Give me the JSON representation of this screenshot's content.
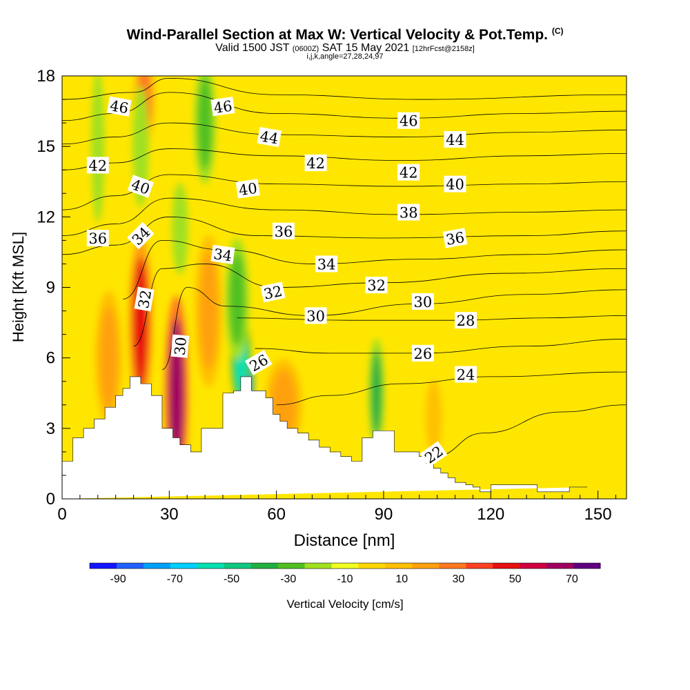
{
  "title": "Wind-Parallel Section at Max W: Vertical Velocity & Pot.Temp.",
  "title_suffix": "(C)",
  "subtitle": {
    "valid_prefix": "Valid 1500 JST",
    "utc": "(0600Z)",
    "date": "SAT 15 May 2021",
    "fcst": "[12hrFcst@2158z]"
  },
  "params": "i,j,k,angle=27,28,24,97",
  "colors": {
    "background_field": "#ffe600",
    "terrain": "#ffffff",
    "contour": "#000000"
  },
  "chart_data": {
    "type": "heatmap",
    "xlabel": "Distance [nm]",
    "ylabel": "Height [Kft MSL]",
    "xlim": [
      0,
      158
    ],
    "ylim": [
      0,
      18
    ],
    "xticks": [
      0,
      30,
      60,
      90,
      120,
      150
    ],
    "yticks": [
      0,
      3,
      6,
      9,
      12,
      15,
      18
    ],
    "colorbar": {
      "label": "Vertical Velocity [cm/s]",
      "tick_labels": [
        -90,
        -70,
        -50,
        -30,
        -10,
        10,
        30,
        50,
        70
      ],
      "min": -100,
      "max": 80,
      "step": 10,
      "colors": [
        "#1414ff",
        "#2060ff",
        "#00a0ff",
        "#00d0ff",
        "#00e0b0",
        "#10c880",
        "#20b040",
        "#50c020",
        "#a0e020",
        "#f0ff20",
        "#ffd800",
        "#ffc000",
        "#ffa010",
        "#ff7820",
        "#ff4020",
        "#e81010",
        "#d00040",
        "#a00060",
        "#600080"
      ]
    },
    "terrain_profile": {
      "x": [
        0,
        3,
        3,
        6,
        6,
        9,
        9,
        12,
        12,
        15,
        15,
        17,
        17,
        19,
        19,
        22,
        22,
        25,
        25,
        28,
        28,
        31,
        31,
        33,
        33,
        36,
        36,
        39,
        39,
        45,
        45,
        48,
        48,
        50,
        50,
        53,
        53,
        57,
        57,
        59,
        59,
        61,
        61,
        63,
        63,
        66,
        66,
        69,
        69,
        72,
        72,
        75,
        75,
        78,
        78,
        81,
        81,
        84,
        84,
        87,
        87,
        93,
        93,
        100,
        100,
        102,
        102,
        104,
        104,
        106,
        106,
        108,
        108,
        110,
        110,
        113,
        113,
        115,
        115,
        117,
        117,
        120,
        120,
        133,
        133,
        142,
        142,
        147,
        147,
        158
      ],
      "y": [
        1.6,
        1.6,
        2.6,
        2.6,
        3.0,
        3.0,
        3.4,
        3.4,
        3.9,
        3.9,
        4.4,
        4.4,
        4.7,
        4.7,
        5.2,
        5.2,
        4.9,
        4.9,
        4.4,
        4.4,
        3.0,
        3.0,
        2.6,
        2.6,
        2.3,
        2.3,
        2.0,
        2.0,
        3.0,
        3.0,
        4.5,
        4.5,
        4.6,
        4.6,
        5.2,
        5.2,
        4.6,
        4.6,
        4.3,
        4.3,
        3.6,
        3.6,
        3.3,
        3.3,
        3.0,
        3.0,
        2.8,
        2.8,
        2.5,
        2.5,
        2.2,
        2.2,
        2.0,
        2.0,
        1.8,
        1.8,
        1.6,
        1.6,
        2.6,
        2.6,
        2.9,
        2.9,
        2.0,
        2.0,
        1.8,
        1.8,
        1.5,
        1.5,
        1.3,
        1.3,
        1.1,
        1.1,
        0.9,
        0.9,
        0.7,
        0.7,
        0.6,
        0.6,
        0.5,
        0.5,
        0.3,
        0.3,
        0.6,
        0.6,
        0.3,
        0.3,
        0.5,
        0.5
      ]
    },
    "velocity_features": [
      {
        "x": 22,
        "y": 7.5,
        "rx": 2.2,
        "ry": 2.8,
        "value": 55
      },
      {
        "x": 32,
        "y": 4.5,
        "rx": 2.2,
        "ry": 3.2,
        "value": 75
      },
      {
        "x": 23,
        "y": 17.0,
        "rx": 2.0,
        "ry": 1.5,
        "value": 30
      },
      {
        "x": 13,
        "y": 6.0,
        "rx": 2.5,
        "ry": 2.2,
        "value": 25
      },
      {
        "x": 41,
        "y": 8.0,
        "rx": 2.5,
        "ry": 2.5,
        "value": 20
      },
      {
        "x": 52,
        "y": 5.0,
        "rx": 1.0,
        "ry": 0.8,
        "value": -95
      },
      {
        "x": 50,
        "y": 6.0,
        "rx": 1.8,
        "ry": 1.5,
        "value": -55
      },
      {
        "x": 49,
        "y": 8.5,
        "rx": 2.2,
        "ry": 2.0,
        "value": -30
      },
      {
        "x": 88,
        "y": 4.5,
        "rx": 1.5,
        "ry": 1.8,
        "value": -35
      },
      {
        "x": 40,
        "y": 16.0,
        "rx": 2.0,
        "ry": 2.0,
        "value": -25
      },
      {
        "x": 22,
        "y": 15.0,
        "rx": 1.5,
        "ry": 2.0,
        "value": -20
      },
      {
        "x": 10,
        "y": 15.0,
        "rx": 1.2,
        "ry": 2.5,
        "value": -15
      },
      {
        "x": 33,
        "y": 11.5,
        "rx": 1.5,
        "ry": 1.5,
        "value": -20
      },
      {
        "x": 62,
        "y": 4.0,
        "rx": 3.5,
        "ry": 1.5,
        "value": 20
      },
      {
        "x": 104,
        "y": 3.5,
        "rx": 1.5,
        "ry": 1.2,
        "value": 15
      }
    ],
    "isentropes": [
      {
        "label": "22",
        "points": [
          [
            88,
            0.9
          ],
          [
            104,
            1.8
          ],
          [
            118,
            2.8
          ],
          [
            140,
            3.7
          ],
          [
            158,
            4.0
          ]
        ]
      },
      {
        "label": "24",
        "points": [
          [
            60,
            4.0
          ],
          [
            75,
            4.4
          ],
          [
            95,
            4.9
          ],
          [
            120,
            5.2
          ],
          [
            158,
            5.4
          ]
        ]
      },
      {
        "label": "26",
        "points": [
          [
            54,
            6.4
          ],
          [
            75,
            6.2
          ],
          [
            100,
            6.2
          ],
          [
            130,
            6.5
          ],
          [
            158,
            6.8
          ]
        ]
      },
      {
        "label": "28",
        "points": [
          [
            49,
            7.7
          ],
          [
            80,
            7.6
          ],
          [
            110,
            7.6
          ],
          [
            135,
            7.7
          ],
          [
            158,
            7.8
          ]
        ]
      },
      {
        "label": "30",
        "points": [
          [
            28,
            5.5
          ],
          [
            35,
            9.0
          ],
          [
            46,
            8.2
          ],
          [
            70,
            7.8
          ],
          [
            100,
            8.3
          ],
          [
            130,
            8.7
          ],
          [
            158,
            8.9
          ]
        ]
      },
      {
        "label": "32",
        "points": [
          [
            20,
            6.5
          ],
          [
            28,
            9.8
          ],
          [
            40,
            10.0
          ],
          [
            60,
            9.0
          ],
          [
            90,
            9.2
          ],
          [
            125,
            9.6
          ],
          [
            158,
            9.8
          ]
        ]
      },
      {
        "label": "34",
        "points": [
          [
            17,
            8.5
          ],
          [
            28,
            11.0
          ],
          [
            45,
            10.6
          ],
          [
            70,
            10.0
          ],
          [
            100,
            10.2
          ],
          [
            130,
            10.4
          ],
          [
            158,
            10.6
          ]
        ]
      },
      {
        "label": "36",
        "points": [
          [
            0,
            10.4
          ],
          [
            15,
            10.8
          ],
          [
            30,
            12.0
          ],
          [
            55,
            11.2
          ],
          [
            90,
            11.1
          ],
          [
            130,
            11.2
          ],
          [
            158,
            11.4
          ]
        ]
      },
      {
        "label": "38",
        "points": [
          [
            0,
            11.2
          ],
          [
            15,
            11.7
          ],
          [
            30,
            12.8
          ],
          [
            60,
            12.3
          ],
          [
            95,
            12.1
          ],
          [
            130,
            12.2
          ],
          [
            158,
            12.3
          ]
        ]
      },
      {
        "label": "40",
        "points": [
          [
            0,
            12.3
          ],
          [
            15,
            12.9
          ],
          [
            30,
            13.8
          ],
          [
            60,
            13.4
          ],
          [
            95,
            13.3
          ],
          [
            130,
            13.4
          ],
          [
            158,
            13.5
          ]
        ]
      },
      {
        "label": "42",
        "points": [
          [
            0,
            14.0
          ],
          [
            15,
            14.3
          ],
          [
            30,
            14.9
          ],
          [
            60,
            14.6
          ],
          [
            95,
            14.4
          ],
          [
            130,
            14.6
          ],
          [
            158,
            14.7
          ]
        ]
      },
      {
        "label": "44",
        "points": [
          [
            0,
            15.1
          ],
          [
            15,
            15.4
          ],
          [
            30,
            16.0
          ],
          [
            60,
            15.5
          ],
          [
            95,
            15.4
          ],
          [
            130,
            15.6
          ],
          [
            158,
            15.7
          ]
        ]
      },
      {
        "label": "46",
        "points": [
          [
            0,
            16.1
          ],
          [
            15,
            16.4
          ],
          [
            30,
            17.3
          ],
          [
            60,
            16.4
          ],
          [
            95,
            16.2
          ],
          [
            130,
            16.4
          ],
          [
            158,
            16.5
          ]
        ]
      },
      {
        "label": "",
        "points": [
          [
            0,
            17.0
          ],
          [
            20,
            17.3
          ],
          [
            30,
            17.9
          ],
          [
            60,
            17.2
          ],
          [
            100,
            17.0
          ],
          [
            158,
            17.2
          ]
        ]
      }
    ],
    "contour_labels": [
      {
        "text": "46",
        "x": 16,
        "y": 16.7,
        "angle": 10
      },
      {
        "text": "46",
        "x": 45,
        "y": 16.7,
        "angle": -8
      },
      {
        "text": "46",
        "x": 97,
        "y": 16.1,
        "angle": 0
      },
      {
        "text": "44",
        "x": 58,
        "y": 15.4,
        "angle": 10
      },
      {
        "text": "44",
        "x": 110,
        "y": 15.3,
        "angle": 0
      },
      {
        "text": "42",
        "x": 10,
        "y": 14.2,
        "angle": 0
      },
      {
        "text": "42",
        "x": 71,
        "y": 14.3,
        "angle": 0
      },
      {
        "text": "42",
        "x": 97,
        "y": 13.9,
        "angle": 0
      },
      {
        "text": "40",
        "x": 22,
        "y": 13.3,
        "angle": 20
      },
      {
        "text": "40",
        "x": 52,
        "y": 13.2,
        "angle": -8
      },
      {
        "text": "40",
        "x": 110,
        "y": 13.4,
        "angle": 0
      },
      {
        "text": "38",
        "x": 97,
        "y": 12.2,
        "angle": 0
      },
      {
        "text": "36",
        "x": 10,
        "y": 11.1,
        "angle": 0
      },
      {
        "text": "36",
        "x": 62,
        "y": 11.4,
        "angle": 0
      },
      {
        "text": "36",
        "x": 110,
        "y": 11.1,
        "angle": -10
      },
      {
        "text": "34",
        "x": 22,
        "y": 11.2,
        "angle": -45
      },
      {
        "text": "34",
        "x": 45,
        "y": 10.4,
        "angle": 8
      },
      {
        "text": "34",
        "x": 74,
        "y": 10.0,
        "angle": 0
      },
      {
        "text": "32",
        "x": 23,
        "y": 8.5,
        "angle": -80
      },
      {
        "text": "32",
        "x": 59,
        "y": 8.8,
        "angle": -12
      },
      {
        "text": "32",
        "x": 88,
        "y": 9.1,
        "angle": 0
      },
      {
        "text": "30",
        "x": 33,
        "y": 6.5,
        "angle": -85
      },
      {
        "text": "30",
        "x": 71,
        "y": 7.8,
        "angle": 0
      },
      {
        "text": "30",
        "x": 101,
        "y": 8.4,
        "angle": 0
      },
      {
        "text": "28",
        "x": 113,
        "y": 7.6,
        "angle": 0
      },
      {
        "text": "26",
        "x": 55,
        "y": 5.8,
        "angle": -30
      },
      {
        "text": "26",
        "x": 101,
        "y": 6.2,
        "angle": 0
      },
      {
        "text": "24",
        "x": 113,
        "y": 5.3,
        "angle": 0
      },
      {
        "text": "22",
        "x": 104,
        "y": 1.9,
        "angle": -35
      }
    ]
  }
}
